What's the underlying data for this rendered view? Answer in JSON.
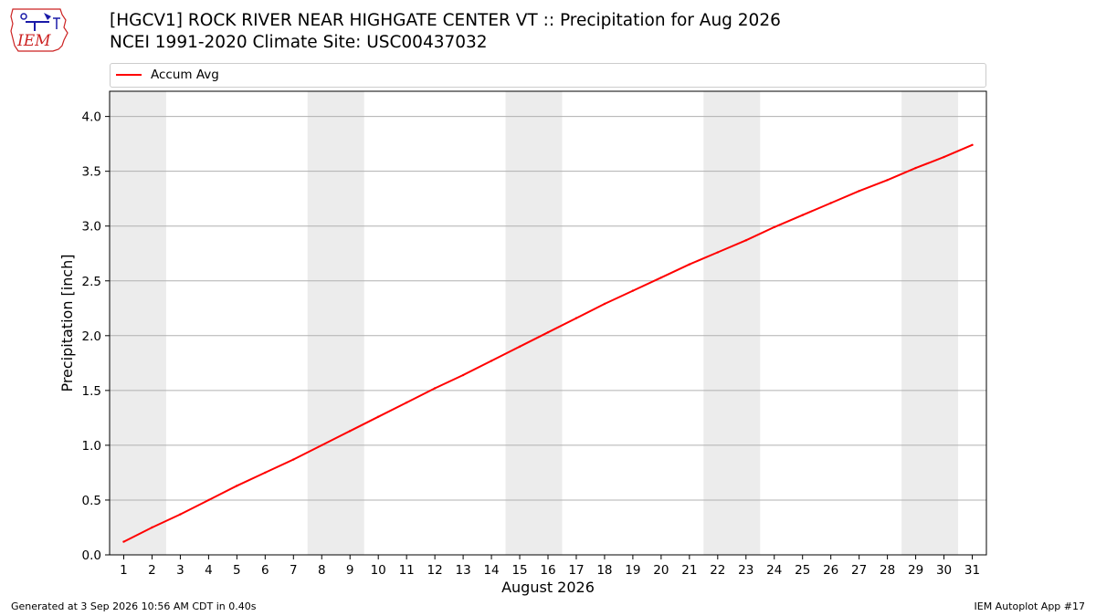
{
  "header": {
    "title_line1": "[HGCV1] ROCK RIVER NEAR HIGHGATE CENTER VT :: Precipitation for Aug 2026",
    "title_line2": "NCEI 1991-2020 Climate Site: USC00437032",
    "logo_text": "IEM"
  },
  "footer": {
    "left": "Generated at 3 Sep 2026 10:56 AM CDT in 0.40s",
    "right": "IEM Autoplot App #17"
  },
  "colors": {
    "series": "#ff0000",
    "weekend_band": "#ececec",
    "grid": "#b0b0b0",
    "logo_red": "#cc2222",
    "logo_blue": "#1a1aa8"
  },
  "chart_data": {
    "type": "line",
    "xlabel": "August 2026",
    "ylabel": "Precipitation [inch]",
    "x": [
      1,
      2,
      3,
      4,
      5,
      6,
      7,
      8,
      9,
      10,
      11,
      12,
      13,
      14,
      15,
      16,
      17,
      18,
      19,
      20,
      21,
      22,
      23,
      24,
      25,
      26,
      27,
      28,
      29,
      30,
      31
    ],
    "xlim": [
      0.5,
      31.5
    ],
    "ylim": [
      0,
      4.23
    ],
    "yticks": [
      0.0,
      0.5,
      1.0,
      1.5,
      2.0,
      2.5,
      3.0,
      3.5,
      4.0
    ],
    "ytick_labels": [
      "0.0",
      "0.5",
      "1.0",
      "1.5",
      "2.0",
      "2.5",
      "3.0",
      "3.5",
      "4.0"
    ],
    "grid": "horizontal",
    "legend_position": "top",
    "weekend_bands": [
      [
        0.5,
        2.5
      ],
      [
        7.5,
        9.5
      ],
      [
        14.5,
        16.5
      ],
      [
        21.5,
        23.5
      ],
      [
        28.5,
        30.5
      ]
    ],
    "series": [
      {
        "name": "Accum Avg",
        "values": [
          0.12,
          0.25,
          0.37,
          0.5,
          0.63,
          0.75,
          0.87,
          1.0,
          1.13,
          1.26,
          1.39,
          1.52,
          1.64,
          1.77,
          1.9,
          2.03,
          2.16,
          2.29,
          2.41,
          2.53,
          2.65,
          2.76,
          2.87,
          2.99,
          3.1,
          3.21,
          3.32,
          3.42,
          3.53,
          3.63,
          3.74
        ]
      }
    ]
  }
}
